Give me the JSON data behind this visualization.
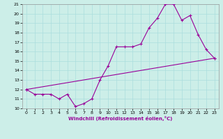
{
  "xlabel": "Windchill (Refroidissement éolien,°C)",
  "background_color": "#cceee8",
  "line_color": "#990099",
  "grid_color": "#aadddd",
  "xlim": [
    -0.5,
    23.5
  ],
  "ylim": [
    10,
    21
  ],
  "yticks": [
    10,
    11,
    12,
    13,
    14,
    15,
    16,
    17,
    18,
    19,
    20,
    21
  ],
  "xticks": [
    0,
    1,
    2,
    3,
    4,
    5,
    6,
    7,
    8,
    9,
    10,
    11,
    12,
    13,
    14,
    15,
    16,
    17,
    18,
    19,
    20,
    21,
    22,
    23
  ],
  "series1_x": [
    0,
    1,
    2,
    3,
    4,
    5,
    6,
    7,
    8,
    9,
    10,
    11,
    12,
    13,
    14,
    15,
    16,
    17,
    18,
    19,
    20,
    21,
    22,
    23
  ],
  "series1_y": [
    12.0,
    11.5,
    11.5,
    11.5,
    11.0,
    11.5,
    10.2,
    10.5,
    11.0,
    13.0,
    14.5,
    16.5,
    16.5,
    16.5,
    16.8,
    18.5,
    19.5,
    21.0,
    21.0,
    19.3,
    19.8,
    17.8,
    16.2,
    15.3
  ],
  "series2_x": [
    0,
    23
  ],
  "series2_y": [
    12.0,
    15.3
  ]
}
